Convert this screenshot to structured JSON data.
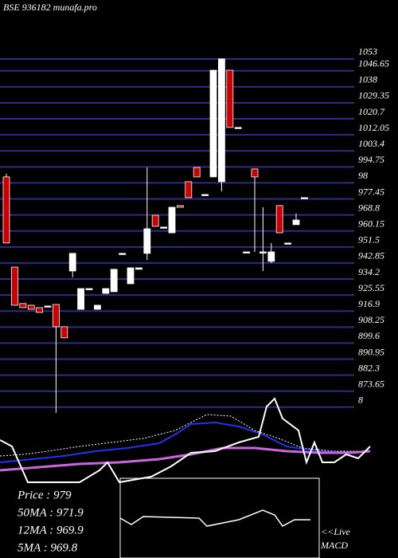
{
  "chart_data": {
    "type": "candlestick",
    "title": "BSE 936182 munafa.pro",
    "ylim": [
      857.6,
      1081.4
    ],
    "yticks": [
      1053,
      1046.65,
      1038,
      1029.35,
      1020.7,
      1012.05,
      1003.4,
      994.75,
      {
        "value": 986.1,
        "label": "98"
      },
      977.45,
      968.8,
      960.15,
      951.5,
      942.85,
      934.2,
      925.55,
      916.9,
      908.25,
      899.6,
      890.95,
      882.3,
      873.65,
      {
        "value": 865,
        "label": "8"
      }
    ],
    "grid": true,
    "up_color": "#ffffff",
    "down_color": "#cc0000",
    "candles": [
      {
        "o": 985.9,
        "h": 987.6,
        "l": 950.2,
        "c": 950.2
      },
      {
        "o": 937.2,
        "h": 937.2,
        "l": 916.6,
        "c": 916.6
      },
      {
        "o": 917.5,
        "h": 917.5,
        "l": 915.3,
        "c": 915.3
      },
      {
        "o": 916.6,
        "h": 916.6,
        "l": 914.4,
        "c": 914.4
      },
      {
        "o": 915.3,
        "h": 915.3,
        "l": 912.7,
        "c": 912.7
      },
      {
        "o": 916.2,
        "h": 916.2,
        "l": 916.2,
        "c": 916.2
      },
      {
        "o": 917.0,
        "h": 917.0,
        "l": 858.5,
        "c": 905.0
      },
      {
        "o": 905.0,
        "h": 905.0,
        "l": 899.0,
        "c": 899.0
      },
      {
        "o": 935.1,
        "h": 944.6,
        "l": 931.7,
        "c": 944.6
      },
      {
        "o": 914.4,
        "h": 925.6,
        "l": 914.4,
        "c": 925.6
      },
      {
        "o": 925.6,
        "h": 925.6,
        "l": 925.6,
        "c": 925.6
      },
      {
        "o": 914.4,
        "h": 916.6,
        "l": 914.4,
        "c": 916.6
      },
      {
        "o": 923.0,
        "h": 925.6,
        "l": 923.0,
        "c": 925.6
      },
      {
        "o": 923.9,
        "h": 936.0,
        "l": 923.9,
        "c": 936.0
      },
      {
        "o": 944.6,
        "h": 944.6,
        "l": 944.6,
        "c": 944.6
      },
      {
        "o": 928.2,
        "h": 936.8,
        "l": 928.2,
        "c": 936.8
      },
      {
        "o": 936.0,
        "h": 936.8,
        "l": 936.0,
        "c": 936.8
      },
      {
        "o": 944.6,
        "h": 991.0,
        "l": 941.1,
        "c": 957.9
      },
      {
        "o": 965.2,
        "h": 965.2,
        "l": 959.2,
        "c": 959.2
      },
      {
        "o": 958.8,
        "h": 958.8,
        "l": 958.8,
        "c": 958.8
      },
      {
        "o": 955.7,
        "h": 969.5,
        "l": 955.7,
        "c": 969.5
      },
      {
        "o": 970.4,
        "h": 970.4,
        "l": 969.5,
        "c": 969.5
      },
      {
        "o": 983.3,
        "h": 983.3,
        "l": 974.7,
        "c": 974.7
      },
      {
        "o": 991.0,
        "h": 991.0,
        "l": 985.9,
        "c": 985.9
      },
      {
        "o": 976.4,
        "h": 976.4,
        "l": 976.4,
        "c": 976.4
      },
      {
        "o": 985.9,
        "h": 1043.5,
        "l": 985.9,
        "c": 1043.5
      },
      {
        "o": 983.3,
        "h": 1049.6,
        "l": 978.0,
        "c": 1049.6
      },
      {
        "o": 1043.5,
        "h": 1043.5,
        "l": 1012.6,
        "c": 1012.6
      },
      {
        "o": 1012.6,
        "h": 1012.6,
        "l": 1012.6,
        "c": 1012.6
      },
      {
        "o": 945.4,
        "h": 945.4,
        "l": 945.4,
        "c": 945.4
      },
      {
        "o": 990.2,
        "h": 990.2,
        "l": 945.4,
        "c": 985.9
      },
      {
        "o": 945.4,
        "h": 969.5,
        "l": 935.1,
        "c": 945.4
      },
      {
        "o": 940.3,
        "h": 950.2,
        "l": 939.4,
        "c": 945.4
      },
      {
        "o": 970.4,
        "h": 970.4,
        "l": 955.7,
        "c": 955.7
      },
      {
        "o": 950.2,
        "h": 950.2,
        "l": 950.2,
        "c": 950.2
      },
      {
        "o": 960.1,
        "h": 966.1,
        "l": 960.1,
        "c": 962.6
      },
      {
        "o": 974.7,
        "h": 974.7,
        "l": 974.7,
        "c": 974.7
      }
    ],
    "info": [
      "Price : 979",
      "50MA : 971.9",
      "12MA : 969.9",
      "5MA : 969.8"
    ],
    "macd_label": [
      "<<Live",
      "MACD"
    ]
  }
}
